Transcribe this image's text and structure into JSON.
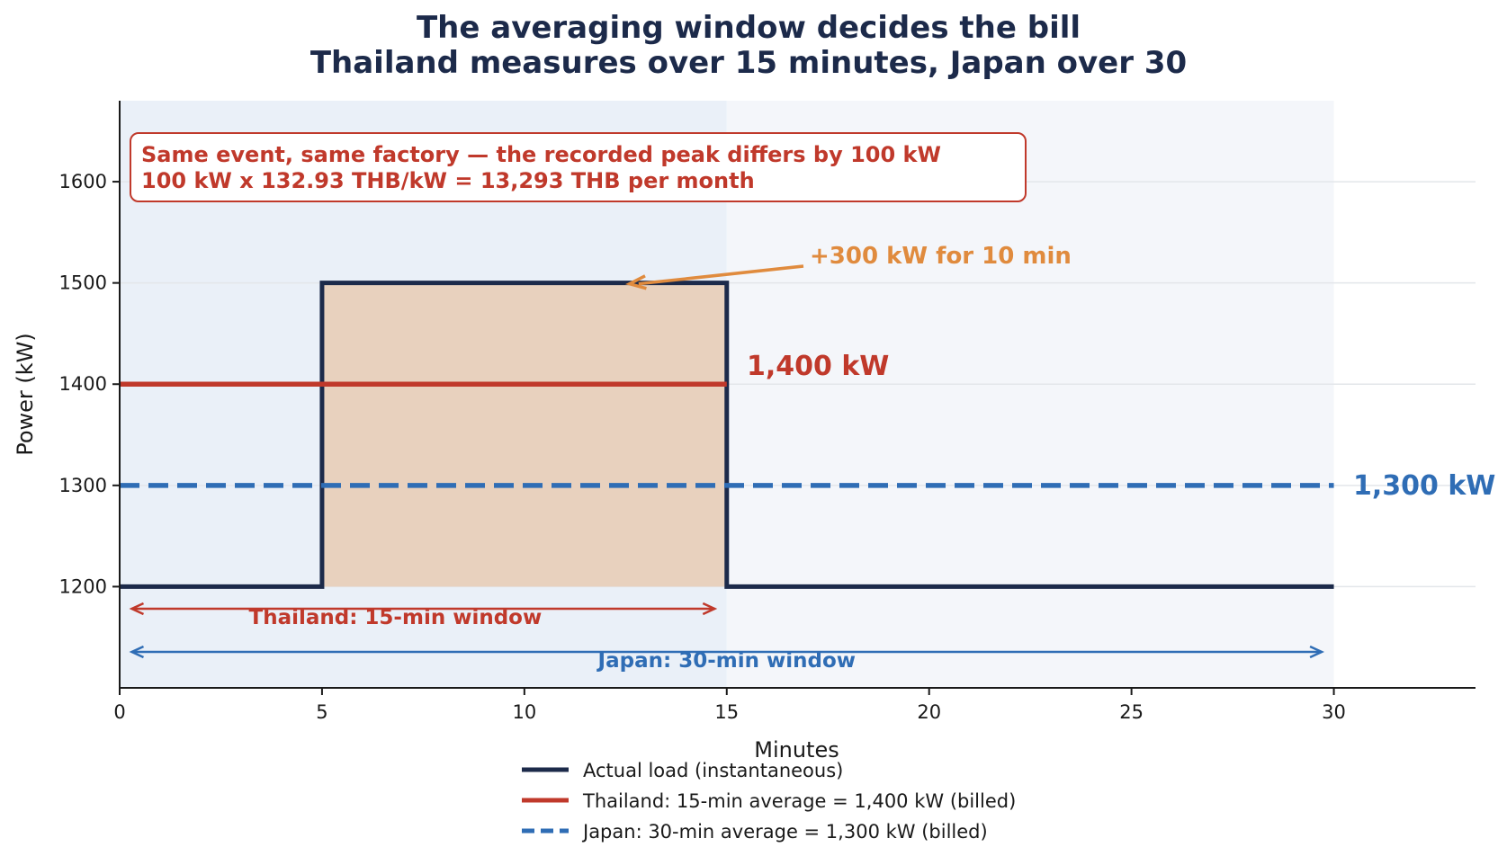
{
  "chart_data": {
    "type": "line",
    "title_lines": [
      "The averaging window decides the bill",
      "Thailand measures over 15 minutes, Japan over 30"
    ],
    "xlabel": "Minutes",
    "ylabel": "Power (kW)",
    "xlim": [
      0,
      33.5
    ],
    "ylim": [
      1100,
      1680
    ],
    "xticks": [
      0,
      5,
      10,
      15,
      20,
      25,
      30
    ],
    "yticks": [
      1200,
      1300,
      1400,
      1500,
      1600
    ],
    "grid": "horizontal",
    "window_shading": [
      {
        "name": "Thailand window",
        "x": [
          0,
          15
        ],
        "color": "#eaf0f8"
      },
      {
        "name": "Japan window",
        "x": [
          15,
          30
        ],
        "color": "#f4f6fa"
      }
    ],
    "excess_fill": {
      "x": [
        5,
        15
      ],
      "y": [
        1200,
        1500
      ],
      "color": "#e8d1be"
    },
    "series": [
      {
        "name": "Actual load (instantaneous)",
        "style": "solid",
        "color": "#1c2a4a",
        "points": [
          [
            0,
            1200
          ],
          [
            5,
            1200
          ],
          [
            5,
            1500
          ],
          [
            15,
            1500
          ],
          [
            15,
            1200
          ],
          [
            30,
            1200
          ]
        ]
      },
      {
        "name": "Thailand: 15-min average = 1,400 kW  (billed)",
        "style": "solid",
        "color": "#c0392b",
        "points": [
          [
            0,
            1400
          ],
          [
            15,
            1400
          ]
        ]
      },
      {
        "name": "Japan: 30-min average = 1,300 kW  (billed)",
        "style": "dashed",
        "color": "#2f6db5",
        "points": [
          [
            0,
            1300
          ],
          [
            30,
            1300
          ]
        ]
      }
    ],
    "annotations": {
      "box_line1": "Same event, same factory — the recorded peak differs by 100 kW",
      "box_line2": "100 kW x 132.93 THB/kW = 13,293 THB per month",
      "spike_label": "+300 kW for 10 min",
      "thailand_value": "1,400 kW",
      "japan_value": "1,300 kW",
      "thailand_window": "Thailand: 15-min window",
      "japan_window": "Japan: 30-min window"
    },
    "colors": {
      "load": "#1c2a4a",
      "thailand": "#c0392b",
      "japan": "#2f6db5",
      "spike": "#e08b3e",
      "grid": "#e3e6ea"
    },
    "legend_position": "bottom-center"
  }
}
